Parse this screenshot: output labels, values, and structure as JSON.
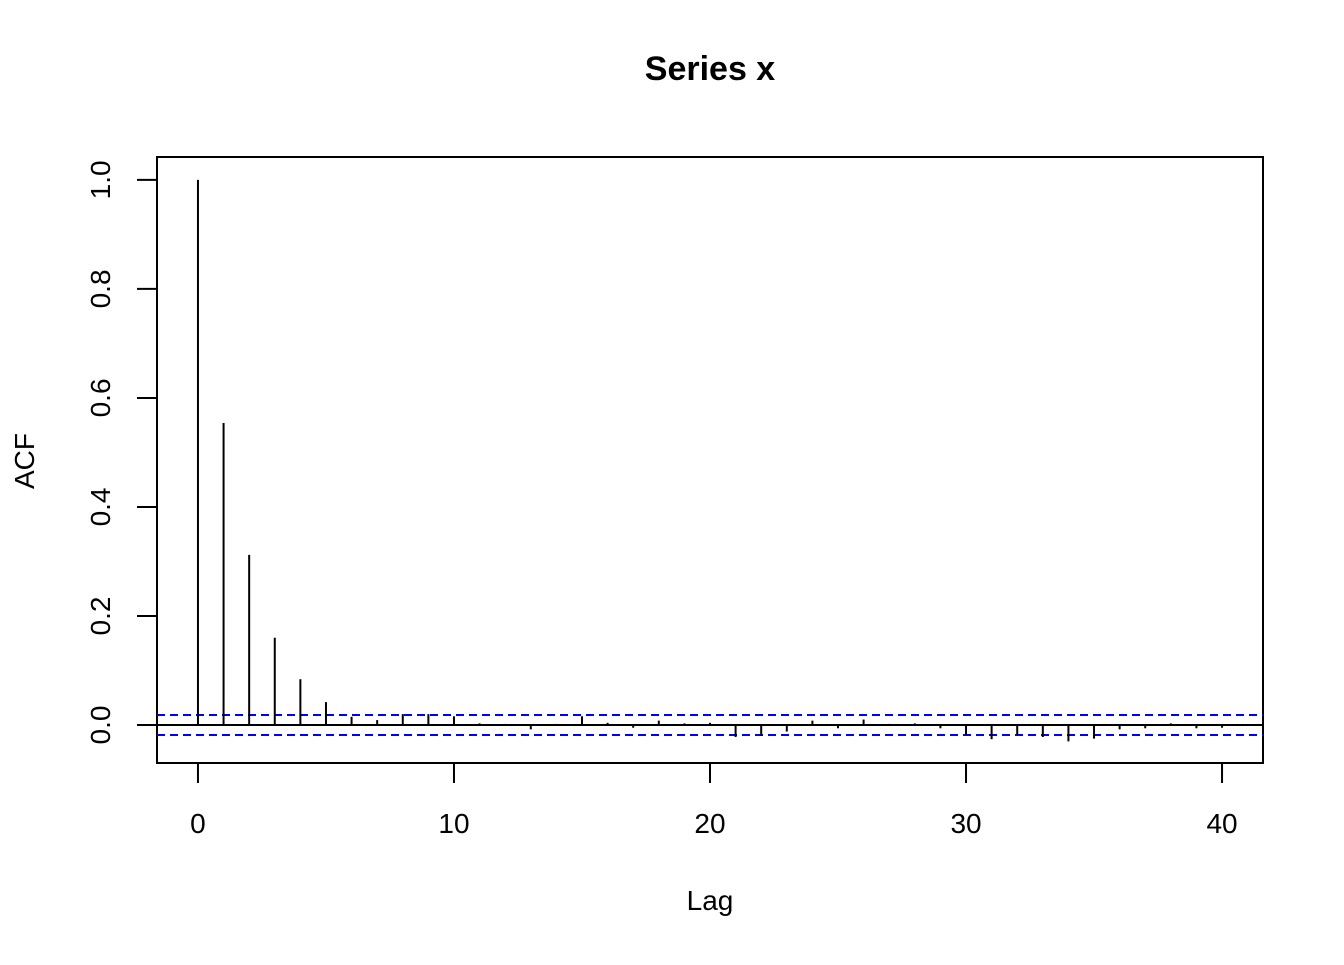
{
  "chart_data": {
    "type": "acf",
    "title": "Series  x",
    "x_label": "Lag",
    "y_label": "ACF",
    "x": [
      0,
      1,
      2,
      3,
      4,
      5,
      6,
      7,
      8,
      9,
      10,
      11,
      12,
      13,
      14,
      15,
      16,
      17,
      18,
      19,
      20,
      21,
      22,
      23,
      24,
      25,
      26,
      27,
      28,
      29,
      30,
      31,
      32,
      33,
      34,
      35,
      36,
      37,
      38,
      39,
      40
    ],
    "values": [
      1.0,
      0.554,
      0.312,
      0.16,
      0.084,
      0.042,
      0.015,
      0.009,
      0.02,
      0.02,
      0.016,
      0.003,
      0.002,
      -0.008,
      0.002,
      0.016,
      0.004,
      -0.005,
      0.008,
      0.003,
      0.004,
      -0.022,
      -0.02,
      -0.012,
      0.008,
      -0.006,
      0.01,
      0.002,
      0.003,
      -0.006,
      -0.018,
      -0.026,
      -0.018,
      -0.022,
      -0.03,
      -0.025,
      -0.008,
      -0.006,
      0.003,
      -0.006,
      -0.005
    ],
    "color": "#000000",
    "ci": [
      0.0184,
      -0.0184
    ],
    "ci_color": "#0000ff",
    "xlim": [
      -1.6,
      41.6
    ],
    "ylim": [
      -0.0697,
      1.042
    ],
    "xticks": [
      0,
      10,
      20,
      30,
      40
    ],
    "yticks": [
      {
        "value": 0,
        "label": "0.0"
      },
      0.2,
      0.4,
      0.6,
      0.8,
      {
        "value": 1,
        "label": "1.0"
      }
    ]
  }
}
